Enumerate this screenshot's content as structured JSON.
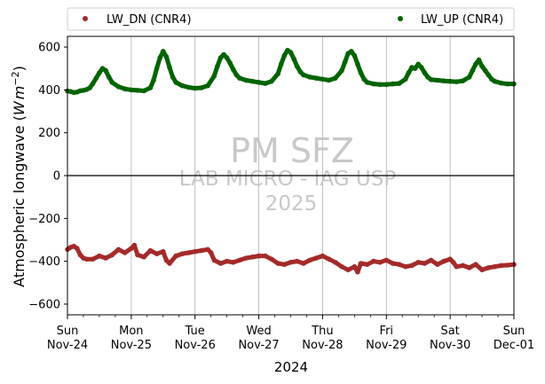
{
  "chart_data": {
    "type": "line",
    "xlabel": "2024",
    "ylabel_base": "Atmospheric longwave (",
    "ylabel_unit_w": "W",
    "ylabel_unit_m": "m",
    "ylabel_unit_exp": "−2",
    "ylabel_close": ")",
    "ylim": [
      -650,
      650
    ],
    "yticks": [
      -600,
      -400,
      -200,
      0,
      200,
      400,
      600
    ],
    "ytick_labels": [
      "−600",
      "−400",
      "−200",
      "0",
      "200",
      "400",
      "600"
    ],
    "xlim": [
      "2024-11-24 00:00",
      "2024-12-01 00:00"
    ],
    "x_unit": "day",
    "xticks": [
      {
        "day": "Sun",
        "date": "Nov-24"
      },
      {
        "day": "Mon",
        "date": "Nov-25"
      },
      {
        "day": "Tue",
        "date": "Nov-26"
      },
      {
        "day": "Wed",
        "date": "Nov-27"
      },
      {
        "day": "Thu",
        "date": "Nov-28"
      },
      {
        "day": "Fri",
        "date": "Nov-29"
      },
      {
        "day": "Sat",
        "date": "Nov-30"
      },
      {
        "day": "Sun",
        "date": "Dec-01"
      }
    ],
    "grid": "vertical",
    "legend_placement": "top, outside",
    "watermark": [
      "PM SFZ",
      "LAB MICRO - IAG USP",
      "2025"
    ],
    "series": [
      {
        "name": "LW_DN (CNR4)",
        "color": "#a52a2a",
        "x_days": [
          0,
          0.05,
          0.1,
          0.15,
          0.2,
          0.25,
          0.3,
          0.4,
          0.5,
          0.6,
          0.7,
          0.8,
          0.9,
          1.0,
          1.05,
          1.1,
          1.2,
          1.3,
          1.4,
          1.5,
          1.55,
          1.6,
          1.7,
          1.8,
          1.9,
          2.0,
          2.1,
          2.2,
          2.25,
          2.3,
          2.4,
          2.5,
          2.6,
          2.7,
          2.8,
          2.9,
          3.0,
          3.1,
          3.2,
          3.3,
          3.4,
          3.5,
          3.6,
          3.7,
          3.8,
          3.9,
          4.0,
          4.1,
          4.2,
          4.3,
          4.4,
          4.5,
          4.55,
          4.6,
          4.7,
          4.8,
          4.9,
          5.0,
          5.1,
          5.2,
          5.3,
          5.4,
          5.5,
          5.6,
          5.7,
          5.8,
          5.9,
          6.0,
          6.05,
          6.1,
          6.2,
          6.3,
          6.4,
          6.5,
          6.6,
          6.7,
          6.8,
          6.9,
          7.0
        ],
        "values": [
          -345,
          -335,
          -330,
          -340,
          -370,
          -385,
          -390,
          -390,
          -375,
          -385,
          -370,
          -345,
          -360,
          -340,
          -325,
          -370,
          -380,
          -350,
          -365,
          -355,
          -395,
          -410,
          -375,
          -365,
          -360,
          -355,
          -350,
          -345,
          -360,
          -395,
          -410,
          -400,
          -405,
          -395,
          -385,
          -380,
          -375,
          -375,
          -390,
          -410,
          -415,
          -405,
          -400,
          -410,
          -395,
          -385,
          -375,
          -390,
          -405,
          -425,
          -440,
          -425,
          -450,
          -410,
          -415,
          -400,
          -405,
          -395,
          -410,
          -415,
          -425,
          -420,
          -405,
          -410,
          -395,
          -415,
          -400,
          -390,
          -405,
          -425,
          -420,
          -430,
          -415,
          -440,
          -430,
          -425,
          -420,
          -418,
          -415
        ]
      },
      {
        "name": "LW_UP (CNR4)",
        "color": "#006400",
        "x_days": [
          0,
          0.05,
          0.1,
          0.15,
          0.2,
          0.25,
          0.3,
          0.35,
          0.4,
          0.45,
          0.5,
          0.55,
          0.6,
          0.65,
          0.7,
          0.8,
          0.9,
          1.0,
          1.1,
          1.2,
          1.3,
          1.35,
          1.4,
          1.45,
          1.5,
          1.55,
          1.6,
          1.65,
          1.7,
          1.8,
          1.9,
          2.0,
          2.1,
          2.2,
          2.3,
          2.35,
          2.4,
          2.45,
          2.5,
          2.55,
          2.6,
          2.65,
          2.7,
          2.8,
          2.9,
          3.0,
          3.1,
          3.2,
          3.3,
          3.35,
          3.4,
          3.45,
          3.5,
          3.55,
          3.6,
          3.65,
          3.7,
          3.8,
          3.9,
          4.0,
          4.1,
          4.2,
          4.3,
          4.35,
          4.4,
          4.45,
          4.5,
          4.55,
          4.6,
          4.65,
          4.7,
          4.8,
          4.9,
          5.0,
          5.1,
          5.2,
          5.3,
          5.35,
          5.4,
          5.45,
          5.5,
          5.55,
          5.6,
          5.65,
          5.7,
          5.8,
          5.9,
          6.0,
          6.1,
          6.2,
          6.3,
          6.35,
          6.4,
          6.45,
          6.5,
          6.55,
          6.6,
          6.65,
          6.7,
          6.8,
          6.9,
          7.0
        ],
        "values": [
          395,
          392,
          388,
          390,
          396,
          398,
          402,
          410,
          430,
          455,
          480,
          500,
          490,
          460,
          435,
          415,
          405,
          400,
          398,
          396,
          410,
          445,
          500,
          550,
          580,
          555,
          505,
          460,
          435,
          420,
          412,
          408,
          410,
          420,
          465,
          510,
          550,
          565,
          550,
          525,
          495,
          470,
          455,
          445,
          440,
          435,
          430,
          440,
          475,
          520,
          560,
          585,
          575,
          545,
          510,
          485,
          470,
          460,
          455,
          450,
          445,
          455,
          490,
          530,
          570,
          580,
          560,
          520,
          480,
          450,
          435,
          428,
          425,
          425,
          428,
          430,
          450,
          480,
          505,
          500,
          520,
          505,
          480,
          460,
          448,
          445,
          442,
          440,
          438,
          442,
          460,
          490,
          520,
          540,
          510,
          490,
          470,
          450,
          440,
          432,
          428,
          428
        ]
      }
    ]
  }
}
